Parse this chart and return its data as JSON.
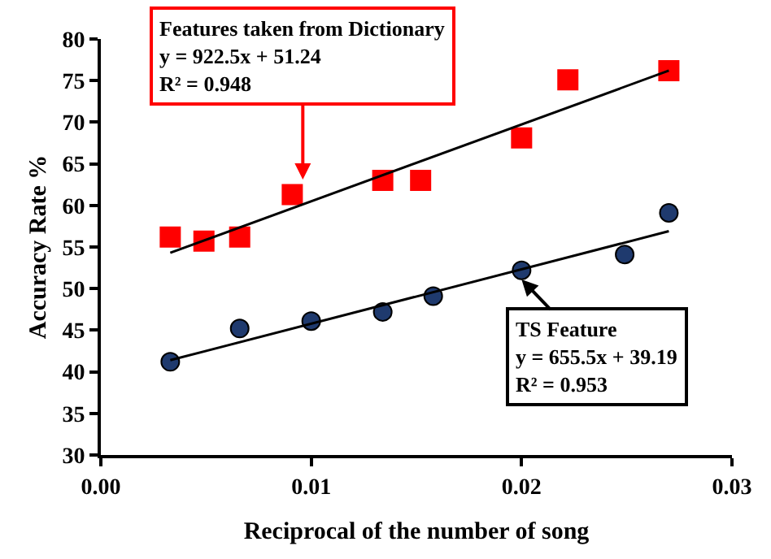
{
  "chart_data": {
    "type": "scatter",
    "xlabel": "Reciprocal of the number of song",
    "ylabel": "Accuracy Rate %",
    "xlim": [
      0,
      0.03
    ],
    "xticks": [
      {
        "value": 0,
        "label": "0.00"
      },
      0.01,
      0.02,
      0.03
    ],
    "ylim": [
      30,
      80
    ],
    "yticks": [
      30,
      35,
      40,
      45,
      50,
      55,
      60,
      65,
      70,
      75,
      80
    ],
    "grid": false,
    "legend": false,
    "series": [
      {
        "marker": "square",
        "color": "#ff0000",
        "x": [
          0.0033,
          0.0049,
          0.0066,
          0.0091,
          0.0134,
          0.0152,
          0.02,
          0.0222,
          0.027
        ],
        "values": [
          56.2,
          55.7,
          56.2,
          61.3,
          63.0,
          63.0,
          68.1,
          75.1,
          76.2
        ]
      },
      {
        "marker": "circle",
        "color": "#1f3a6e",
        "x": [
          0.0033,
          0.0066,
          0.01,
          0.0134,
          0.0158,
          0.02,
          0.0249,
          0.027
        ],
        "values": [
          41.2,
          45.2,
          46.1,
          47.2,
          49.1,
          52.2,
          54.1,
          59.1
        ]
      },
      {
        "type": "line",
        "marker": "none",
        "color": "#000000",
        "x": [
          0.0033,
          0.027
        ],
        "values": [
          54.3,
          76.2
        ]
      },
      {
        "type": "line",
        "marker": "none",
        "color": "#000000",
        "x": [
          0.0033,
          0.027
        ],
        "values": [
          41.4,
          56.9
        ]
      }
    ],
    "annotations": [
      {
        "text": "Features taken from Dictionary\ny = 922.5x + 51.24\nR² = 0.948",
        "x": 0.0096,
        "y": 63.1
      },
      {
        "text": "TS Feature\ny = 655.5x + 39.19\nR² = 0.953",
        "x": 0.02,
        "y": 51.1
      }
    ]
  }
}
